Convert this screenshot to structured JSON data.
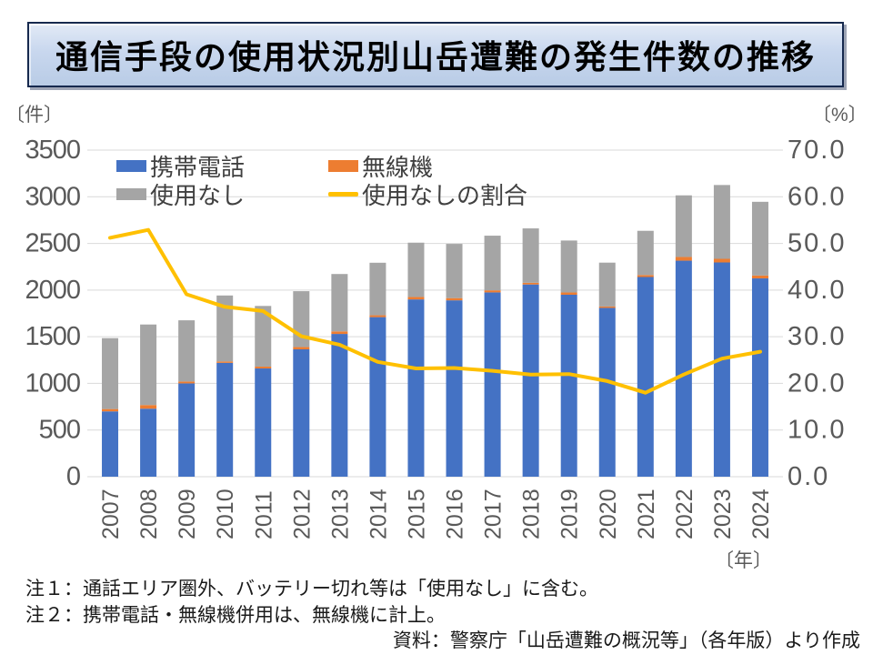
{
  "title": "通信手段の使用状況別山岳遭難の発生件数の推移",
  "left_axis": {
    "unit": "〔件〕",
    "ticks": [
      "3500",
      "3000",
      "2500",
      "2000",
      "1500",
      "1000",
      "500",
      "0"
    ],
    "max": 3500,
    "step": 500
  },
  "right_axis": {
    "unit": "〔%〕",
    "ticks": [
      "70.0",
      "60.0",
      "50.0",
      "40.0",
      "30.0",
      "20.0",
      "10.0",
      "0.0"
    ],
    "max": 70,
    "step": 10
  },
  "x_axis": {
    "unit": "〔年〕",
    "years": [
      "2007",
      "2008",
      "2009",
      "2010",
      "2011",
      "2012",
      "2013",
      "2014",
      "2015",
      "2016",
      "2017",
      "2018",
      "2019",
      "2020",
      "2021",
      "2022",
      "2023",
      "2024"
    ]
  },
  "legend": {
    "items": [
      {
        "label": "携帯電話",
        "color": "#4472C4",
        "type": "box"
      },
      {
        "label": "無線機",
        "color": "#ED7D31",
        "type": "box"
      },
      {
        "label": "使用なし",
        "color": "#A5A5A5",
        "type": "box"
      },
      {
        "label": "使用なしの割合",
        "color": "#FFC000",
        "type": "line"
      }
    ]
  },
  "notes": [
    "注１：通話エリア圏外、バッテリー切れ等は「使用なし」に含む。",
    "注２：携帯電話・無線機併用は、無線機に計上。"
  ],
  "source": "資料：警察庁「山岳遭難の概況等」（各年版）より作成",
  "colors": {
    "mobile": "#4472C4",
    "radio": "#ED7D31",
    "none": "#A5A5A5",
    "ratio_line": "#FFC000",
    "gridline": "#D9D9D9",
    "axis_text": "#595959"
  },
  "chart_data": {
    "type": "bar",
    "subtype": "stacked-bar-with-line",
    "title": "通信手段の使用状況別山岳遭難の発生件数の推移",
    "categories": [
      "2007",
      "2008",
      "2009",
      "2010",
      "2011",
      "2012",
      "2013",
      "2014",
      "2015",
      "2016",
      "2017",
      "2018",
      "2019",
      "2020",
      "2021",
      "2022",
      "2023",
      "2024"
    ],
    "series": [
      {
        "name": "携帯電話",
        "type": "bar",
        "stack": "count",
        "axis": "left",
        "color": "#4472C4",
        "values": [
          700,
          729,
          1000,
          1220,
          1160,
          1365,
          1530,
          1710,
          1900,
          1890,
          1975,
          2060,
          1950,
          1809,
          2140,
          2315,
          2296,
          2125
        ]
      },
      {
        "name": "無線機",
        "type": "bar",
        "stack": "count",
        "axis": "left",
        "color": "#ED7D31",
        "values": [
          25,
          39,
          20,
          15,
          20,
          25,
          27,
          20,
          26,
          24,
          22,
          18,
          24,
          15,
          21,
          40,
          39,
          31
        ]
      },
      {
        "name": "使用なし",
        "type": "bar",
        "stack": "count",
        "axis": "left",
        "color": "#A5A5A5",
        "values": [
          760,
          863,
          656,
          707,
          650,
          598,
          615,
          563,
          582,
          581,
          586,
          583,
          557,
          470,
          474,
          660,
          791,
          790
        ]
      },
      {
        "name": "使用なしの割合",
        "type": "line",
        "axis": "right",
        "color": "#FFC000",
        "values": [
          51.2,
          52.9,
          39.1,
          36.4,
          35.5,
          30.1,
          28.3,
          24.6,
          23.2,
          23.3,
          22.7,
          21.9,
          22.0,
          20.5,
          18.0,
          21.9,
          25.3,
          26.8
        ]
      }
    ],
    "totals": [
      1485,
      1631,
      1676,
      1942,
      1830,
      1988,
      2172,
      2293,
      2508,
      2495,
      2583,
      2661,
      2531,
      2294,
      2635,
      3015,
      3126,
      2946
    ],
    "xlabel": "〔年〕",
    "ylabel_left": "〔件〕",
    "ylabel_right": "〔%〕",
    "left_ylim": [
      0,
      3500
    ],
    "right_ylim": [
      0,
      70
    ],
    "grid": true,
    "legend_position": "top-inside"
  }
}
